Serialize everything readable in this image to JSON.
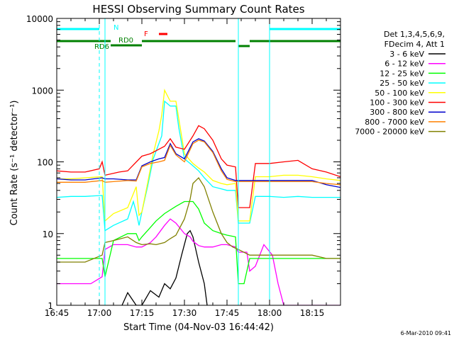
{
  "chart_data": {
    "type": "line",
    "title": "HESSI Observing Summary Count Rates",
    "xlabel": "Start Time (04-Nov-03 16:44:42)",
    "ylabel": "Count Rate (s⁻¹ detector⁻¹)",
    "yscale": "log",
    "ylim": [
      1,
      10000
    ],
    "xlim_minutes": [
      0,
      100
    ],
    "x_ticks": [
      {
        "label": "16:45",
        "m": 0
      },
      {
        "label": "17:00",
        "m": 15
      },
      {
        "label": "17:15",
        "m": 30
      },
      {
        "label": "17:30",
        "m": 45
      },
      {
        "label": "17:45",
        "m": 60
      },
      {
        "label": "18:00",
        "m": 75
      },
      {
        "label": "18:15",
        "m": 90
      }
    ],
    "y_ticks": [
      {
        "label": "1",
        "v": 1
      },
      {
        "label": "10",
        "v": 10
      },
      {
        "label": "100",
        "v": 100
      },
      {
        "label": "1000",
        "v": 1000
      },
      {
        "label": "10000",
        "v": 10000
      }
    ],
    "legend_header": [
      "Det 1,3,4,5,6,9,",
      "FDecim 4, Att 1"
    ],
    "legend_position": "right",
    "series": [
      {
        "name": "3 - 6 keV",
        "color": "#000000",
        "x": [
          0,
          17,
          23,
          25,
          28,
          30,
          33,
          36,
          38,
          40,
          42,
          44,
          46,
          47,
          48,
          50,
          52,
          53,
          55,
          64,
          67,
          70,
          75,
          80,
          85,
          90,
          95,
          100
        ],
        "values": [
          null,
          null,
          1,
          1.5,
          1,
          1,
          1.6,
          1.3,
          2,
          1.7,
          2.4,
          5,
          10,
          11,
          9,
          4,
          2,
          1,
          null,
          null,
          null,
          null,
          null,
          null,
          null,
          null,
          null,
          null
        ]
      },
      {
        "name": "6 - 12 keV",
        "color": "#ff00ff",
        "x": [
          0,
          12,
          16,
          17,
          20,
          25,
          28,
          30,
          33,
          35,
          38,
          40,
          42,
          45,
          47,
          48,
          50,
          52,
          55,
          58,
          60,
          63,
          64,
          67,
          68,
          70,
          73,
          76,
          78,
          80,
          85,
          90,
          95,
          100
        ],
        "values": [
          2,
          2,
          2.5,
          6,
          7,
          7,
          6.5,
          6.5,
          7.5,
          9,
          13,
          16,
          14,
          10,
          9,
          7.8,
          6.8,
          6.5,
          6.5,
          7,
          7,
          6.5,
          5.5,
          5.5,
          3,
          3.5,
          7,
          5,
          2,
          1,
          1,
          1,
          1,
          1
        ]
      },
      {
        "name": "12 - 25 keV",
        "color": "#00ff00",
        "x": [
          0,
          16,
          17,
          20,
          25,
          28,
          29,
          30,
          32,
          35,
          38,
          42,
          45,
          48,
          50,
          52,
          55,
          58,
          60,
          63,
          64,
          66,
          68,
          70,
          75,
          80,
          85,
          90,
          95,
          100
        ],
        "values": [
          4.5,
          4.5,
          2.5,
          8,
          10,
          10,
          8,
          9,
          11,
          15,
          19,
          24,
          28,
          28,
          22,
          14,
          11,
          10,
          9.5,
          9,
          2,
          2,
          4.5,
          4.5,
          4.5,
          4.5,
          4.5,
          4.5,
          4.5,
          4.5
        ]
      },
      {
        "name": "25 - 50 keV",
        "color": "#00ffff",
        "x": [
          0,
          5,
          10,
          16,
          17,
          20,
          25,
          27,
          28,
          29,
          30,
          32,
          34,
          37,
          38,
          40,
          42,
          43,
          45,
          47,
          48,
          50,
          52,
          55,
          58,
          60,
          63,
          64,
          68,
          70,
          75,
          80,
          85,
          90,
          95,
          100
        ],
        "values": [
          32,
          33,
          33,
          34,
          11,
          13,
          16,
          28,
          20,
          13,
          20,
          45,
          110,
          230,
          700,
          600,
          600,
          300,
          110,
          95,
          88,
          75,
          60,
          45,
          42,
          40,
          40,
          14,
          14,
          33,
          33,
          32,
          33,
          32,
          32,
          32
        ]
      },
      {
        "name": "50 - 100 keV",
        "color": "#ffff00",
        "x": [
          0,
          5,
          10,
          16,
          17,
          20,
          25,
          28,
          29,
          30,
          32,
          34,
          36,
          37,
          38,
          40,
          42,
          43,
          45,
          47,
          48,
          50,
          52,
          55,
          58,
          60,
          63,
          64,
          68,
          70,
          75,
          80,
          85,
          90,
          95,
          100
        ],
        "values": [
          58,
          58,
          60,
          62,
          15,
          19,
          23,
          45,
          18,
          20,
          50,
          130,
          270,
          450,
          1000,
          700,
          700,
          400,
          130,
          105,
          95,
          82,
          72,
          55,
          50,
          48,
          50,
          15,
          15,
          62,
          62,
          65,
          65,
          62,
          58,
          55
        ]
      },
      {
        "name": "100 - 300 keV",
        "color": "#ff0000",
        "x": [
          0,
          5,
          10,
          15,
          16,
          17,
          22,
          25,
          30,
          33,
          36,
          38,
          40,
          42,
          45,
          48,
          50,
          52,
          55,
          58,
          60,
          63,
          64,
          68,
          70,
          75,
          80,
          85,
          90,
          95,
          100
        ],
        "values": [
          75,
          72,
          72,
          80,
          100,
          65,
          72,
          75,
          120,
          130,
          150,
          165,
          210,
          160,
          150,
          230,
          320,
          290,
          200,
          110,
          90,
          85,
          23,
          23,
          95,
          95,
          100,
          105,
          80,
          72,
          62
        ]
      },
      {
        "name": "300 - 800 keV",
        "color": "#0000cc",
        "x": [
          0,
          5,
          10,
          16,
          17,
          20,
          25,
          28,
          30,
          33,
          36,
          38,
          40,
          42,
          45,
          48,
          50,
          52,
          55,
          58,
          60,
          63,
          64,
          68,
          70,
          75,
          80,
          85,
          90,
          95,
          100
        ],
        "values": [
          58,
          56,
          56,
          60,
          58,
          58,
          56,
          56,
          88,
          100,
          110,
          115,
          180,
          130,
          110,
          190,
          210,
          195,
          140,
          80,
          60,
          55,
          55,
          55,
          55,
          55,
          55,
          55,
          55,
          48,
          44
        ]
      },
      {
        "name": "800 - 7000 keV",
        "color": "#ff8000",
        "x": [
          0,
          5,
          10,
          16,
          17,
          20,
          25,
          28,
          30,
          33,
          36,
          38,
          40,
          42,
          45,
          48,
          50,
          52,
          55,
          58,
          60,
          63,
          64,
          68,
          70,
          75,
          80,
          85,
          90,
          95,
          100
        ],
        "values": [
          52,
          52,
          52,
          55,
          52,
          53,
          55,
          54,
          85,
          95,
          100,
          105,
          170,
          125,
          100,
          180,
          200,
          190,
          135,
          75,
          57,
          53,
          53,
          53,
          53,
          53,
          53,
          53,
          53,
          50,
          48
        ]
      },
      {
        "name": "7000 - 20000 keV",
        "color": "#808000",
        "x": [
          0,
          10,
          16,
          17,
          20,
          25,
          28,
          30,
          33,
          35,
          38,
          40,
          42,
          45,
          47,
          48,
          50,
          52,
          55,
          58,
          60,
          62,
          64,
          68,
          70,
          75,
          80,
          85,
          90,
          95,
          100
        ],
        "values": [
          4,
          4,
          5,
          7.5,
          8,
          9,
          7.5,
          7,
          7.2,
          7,
          7.5,
          8.5,
          9.5,
          16,
          30,
          50,
          60,
          45,
          20,
          10,
          7.5,
          6.5,
          6,
          5,
          5,
          5,
          5,
          5,
          5,
          4.5,
          4.5
        ]
      }
    ],
    "annotations": {
      "state_bars": [
        {
          "segments": [
            [
              0,
              15
            ],
            [
              75,
              100
            ]
          ],
          "level": "top",
          "color": "#00ffff"
        },
        {
          "segments": [
            [
              0,
              19
            ],
            [
              30,
              63
            ],
            [
              68,
              100
            ]
          ],
          "level": "mid",
          "color": "#008000"
        },
        {
          "segments": [
            [
              19,
              30
            ]
          ],
          "level": "low",
          "color": "#008000"
        },
        {
          "segments": [
            [
              64,
              68
            ]
          ],
          "level": "lower",
          "color": "#008000"
        },
        {
          "segments": [
            [
              36,
              39
            ]
          ],
          "level": "flare",
          "color": "#ff0000"
        }
      ],
      "labels": [
        {
          "text": "N",
          "color": "#00ffff"
        },
        {
          "text": "RD0",
          "color": "#008000"
        },
        {
          "text": "RD6",
          "color": "#008000"
        },
        {
          "text": "F",
          "color": "#ff0000"
        }
      ],
      "vertical_lines_minutes": [
        {
          "m": 0,
          "style": "solid"
        },
        {
          "m": 17,
          "style": "solid"
        },
        {
          "m": 64,
          "style": "solid"
        },
        {
          "m": 15,
          "style": "dashed"
        },
        {
          "m": 75,
          "style": "solid"
        },
        {
          "m": 100,
          "style": "dashed"
        }
      ]
    },
    "footer_date": "6-Mar-2010 09:41"
  }
}
